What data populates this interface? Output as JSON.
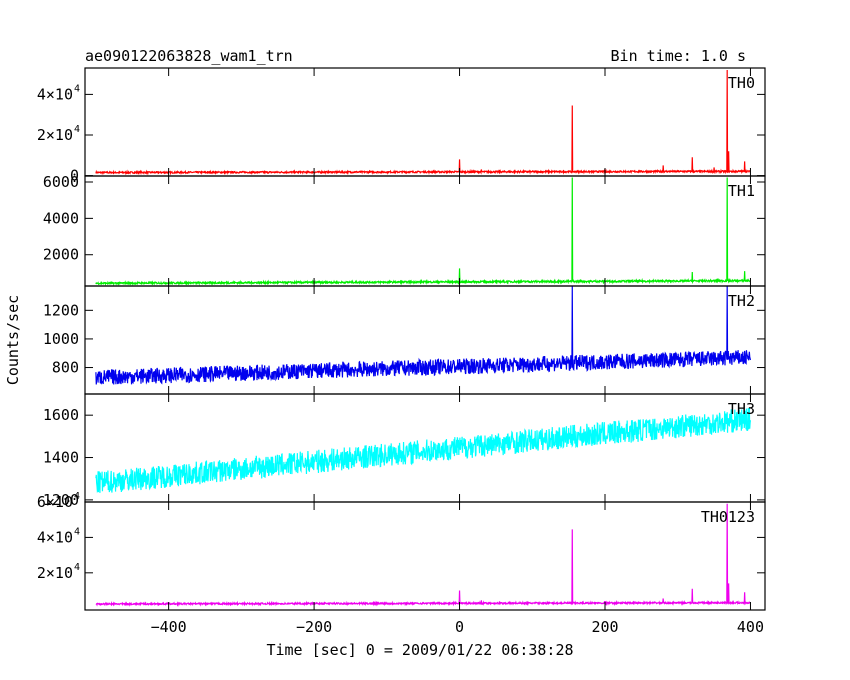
{
  "header": {
    "title": "ae090122063828_wam1_trn",
    "bin_time": "Bin time: 1.0 s"
  },
  "axes": {
    "xlabel": "Time [sec] 0 = 2009/01/22 06:38:28",
    "ylabel": "Counts/sec",
    "xlim": [
      -515,
      420
    ],
    "xticks": [
      -400,
      -200,
      0,
      200,
      400
    ],
    "xtick_labels": [
      "−400",
      "−200",
      "0",
      "200",
      "400"
    ]
  },
  "chart_data": [
    {
      "type": "line",
      "name": "TH0",
      "color": "#ff0000",
      "ylim": [
        -200,
        53000
      ],
      "yticks": [
        0,
        20000,
        40000
      ],
      "ytick_labels": [
        {
          "mant": "0",
          "exp": ""
        },
        {
          "mant": "2×10",
          "exp": "4"
        },
        {
          "mant": "4×10",
          "exp": "4"
        }
      ],
      "base_start": 1500,
      "base_end": 2100,
      "noise": 400,
      "spikes": [
        {
          "t": 0,
          "v": 8000
        },
        {
          "t": 30,
          "v": 3000
        },
        {
          "t": 155,
          "v": 34500
        },
        {
          "t": 280,
          "v": 5000
        },
        {
          "t": 320,
          "v": 9000
        },
        {
          "t": 350,
          "v": 4000
        },
        {
          "t": 368,
          "v": 52000
        },
        {
          "t": 370,
          "v": 12000
        },
        {
          "t": 392,
          "v": 7000
        }
      ]
    },
    {
      "type": "line",
      "name": "TH1",
      "color": "#00ee00",
      "ylim": [
        280,
        6330
      ],
      "yticks": [
        2000,
        4000,
        6000
      ],
      "ytick_labels": [
        {
          "mant": "2000",
          "exp": ""
        },
        {
          "mant": "4000",
          "exp": ""
        },
        {
          "mant": "6000",
          "exp": ""
        }
      ],
      "base_start": 430,
      "base_end": 570,
      "noise": 50,
      "spikes": [
        {
          "t": 0,
          "v": 1250
        },
        {
          "t": 155,
          "v": 6250
        },
        {
          "t": 320,
          "v": 1050
        },
        {
          "t": 368,
          "v": 6250
        },
        {
          "t": 392,
          "v": 1100
        }
      ]
    },
    {
      "type": "line",
      "name": "TH2",
      "color": "#0000ee",
      "ylim": [
        615,
        1370
      ],
      "yticks": [
        800,
        1000,
        1200
      ],
      "ytick_labels": [
        {
          "mant": "800",
          "exp": ""
        },
        {
          "mant": "1000",
          "exp": ""
        },
        {
          "mant": "1200",
          "exp": ""
        }
      ],
      "base_start": 730,
      "base_end": 870,
      "noise": 55,
      "spikes": [
        {
          "t": 155,
          "v": 1370
        },
        {
          "t": 368,
          "v": 1370
        }
      ]
    },
    {
      "type": "line",
      "name": "TH3",
      "color": "#00ffff",
      "ylim": [
        1190,
        1700
      ],
      "yticks": [
        1200,
        1400,
        1600
      ],
      "ytick_labels": [
        {
          "mant": "1200",
          "exp": ""
        },
        {
          "mant": "1400",
          "exp": ""
        },
        {
          "mant": "1600",
          "exp": ""
        }
      ],
      "base_start": 1280,
      "base_end": 1580,
      "noise": 55,
      "spikes": []
    },
    {
      "type": "line",
      "name": "TH0123",
      "color": "#ee00ee",
      "ylim": [
        -1000,
        60000
      ],
      "yticks": [
        20000,
        40000,
        60000
      ],
      "ytick_labels": [
        {
          "mant": "2×10",
          "exp": "4"
        },
        {
          "mant": "4×10",
          "exp": "4"
        },
        {
          "mant": "6×10",
          "exp": "4"
        }
      ],
      "base_start": 2400,
      "base_end": 3100,
      "noise": 450,
      "spikes": [
        {
          "t": 0,
          "v": 10000
        },
        {
          "t": 30,
          "v": 4500
        },
        {
          "t": 155,
          "v": 44500
        },
        {
          "t": 200,
          "v": 4000
        },
        {
          "t": 280,
          "v": 5500
        },
        {
          "t": 320,
          "v": 11000
        },
        {
          "t": 368,
          "v": 59000
        },
        {
          "t": 370,
          "v": 14000
        },
        {
          "t": 392,
          "v": 9000
        }
      ]
    }
  ]
}
